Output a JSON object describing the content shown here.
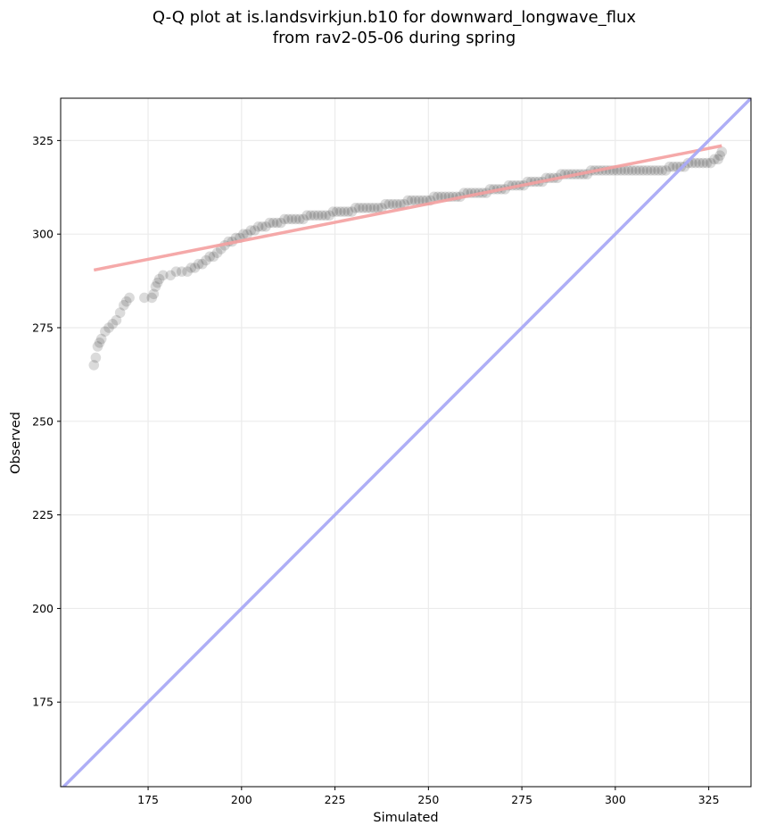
{
  "chart_data": {
    "type": "scatter",
    "title_line1": "Q-Q plot at is.landsvirkjun.b10 for downward_longwave_flux",
    "title_line2": "from rav2-05-06 during spring",
    "xlabel": "Simulated",
    "ylabel": "Observed",
    "xlim": [
      151.6,
      336.3
    ],
    "ylim": [
      152.4,
      336.3
    ],
    "xticks": [
      175,
      200,
      225,
      250,
      275,
      300,
      325
    ],
    "yticks": [
      175,
      200,
      225,
      250,
      275,
      300,
      325
    ],
    "grid": true,
    "points_color": "#000000",
    "fit_line_color": "#f4a0a0",
    "identity_line_color": "#aaaaf5",
    "fit_line": {
      "x": [
        160.5,
        328.5
      ],
      "y": [
        290.4,
        323.6
      ]
    },
    "identity_line": {
      "x": [
        151.6,
        336.3
      ],
      "y": [
        151.6,
        336.3
      ]
    },
    "points": [
      [
        160.5,
        265
      ],
      [
        161,
        267
      ],
      [
        161.5,
        270
      ],
      [
        162,
        271
      ],
      [
        162.5,
        272
      ],
      [
        163.5,
        274
      ],
      [
        164.5,
        275
      ],
      [
        165.5,
        276
      ],
      [
        166.5,
        277
      ],
      [
        167.5,
        279
      ],
      [
        168.5,
        281
      ],
      [
        169.2,
        282
      ],
      [
        170,
        283
      ],
      [
        174,
        283
      ],
      [
        176,
        283
      ],
      [
        176.5,
        284
      ],
      [
        177,
        286
      ],
      [
        177.5,
        287
      ],
      [
        178,
        288
      ],
      [
        179,
        289
      ],
      [
        181,
        289
      ],
      [
        182.5,
        290
      ],
      [
        184,
        290
      ],
      [
        185.5,
        290
      ],
      [
        186.5,
        291
      ],
      [
        187.5,
        291
      ],
      [
        188.5,
        292
      ],
      [
        189.5,
        292
      ],
      [
        190.5,
        293
      ],
      [
        191.5,
        294
      ],
      [
        192.5,
        294
      ],
      [
        193.5,
        295
      ],
      [
        194.5,
        296
      ],
      [
        195.5,
        297
      ],
      [
        196.5,
        298
      ],
      [
        197.5,
        298
      ],
      [
        198.5,
        299
      ],
      [
        199.5,
        299
      ],
      [
        200.5,
        300
      ],
      [
        201.5,
        300
      ],
      [
        202.5,
        301
      ],
      [
        203.5,
        301
      ],
      [
        204.5,
        302
      ],
      [
        205.5,
        302
      ],
      [
        206.5,
        302
      ],
      [
        207.5,
        303
      ],
      [
        208.5,
        303
      ],
      [
        209.5,
        303
      ],
      [
        210.5,
        303
      ],
      [
        211.5,
        304
      ],
      [
        212.5,
        304
      ],
      [
        213.5,
        304
      ],
      [
        214.5,
        304
      ],
      [
        215.5,
        304
      ],
      [
        216.5,
        304
      ],
      [
        217.5,
        305
      ],
      [
        218.5,
        305
      ],
      [
        219.5,
        305
      ],
      [
        220.5,
        305
      ],
      [
        221.5,
        305
      ],
      [
        222.5,
        305
      ],
      [
        223.5,
        305
      ],
      [
        224.5,
        306
      ],
      [
        225.5,
        306
      ],
      [
        226.5,
        306
      ],
      [
        227.5,
        306
      ],
      [
        228.5,
        306
      ],
      [
        229.5,
        306
      ],
      [
        230.5,
        307
      ],
      [
        231.5,
        307
      ],
      [
        232.5,
        307
      ],
      [
        233.5,
        307
      ],
      [
        234.5,
        307
      ],
      [
        235.5,
        307
      ],
      [
        236.5,
        307
      ],
      [
        237.5,
        307
      ],
      [
        238.5,
        308
      ],
      [
        239.5,
        308
      ],
      [
        240.5,
        308
      ],
      [
        241.5,
        308
      ],
      [
        242.5,
        308
      ],
      [
        243.5,
        308
      ],
      [
        244.5,
        309
      ],
      [
        245.5,
        309
      ],
      [
        246.5,
        309
      ],
      [
        247.5,
        309
      ],
      [
        248.5,
        309
      ],
      [
        249.5,
        309
      ],
      [
        250.5,
        309
      ],
      [
        251.5,
        310
      ],
      [
        252.5,
        310
      ],
      [
        253.5,
        310
      ],
      [
        254.5,
        310
      ],
      [
        255.5,
        310
      ],
      [
        256.5,
        310
      ],
      [
        257.5,
        310
      ],
      [
        258.5,
        310
      ],
      [
        259.5,
        311
      ],
      [
        260.5,
        311
      ],
      [
        261.5,
        311
      ],
      [
        262.5,
        311
      ],
      [
        263.5,
        311
      ],
      [
        264.5,
        311
      ],
      [
        265.5,
        311
      ],
      [
        266.5,
        312
      ],
      [
        267.5,
        312
      ],
      [
        268.5,
        312
      ],
      [
        269.5,
        312
      ],
      [
        270.5,
        312
      ],
      [
        271.5,
        313
      ],
      [
        272.5,
        313
      ],
      [
        273.5,
        313
      ],
      [
        274.5,
        313
      ],
      [
        275.5,
        313
      ],
      [
        276.5,
        314
      ],
      [
        277.5,
        314
      ],
      [
        278.5,
        314
      ],
      [
        279.5,
        314
      ],
      [
        280.5,
        314
      ],
      [
        281.5,
        315
      ],
      [
        282.5,
        315
      ],
      [
        283.5,
        315
      ],
      [
        284.5,
        315
      ],
      [
        285.5,
        316
      ],
      [
        286.5,
        316
      ],
      [
        287.5,
        316
      ],
      [
        288.5,
        316
      ],
      [
        289.5,
        316
      ],
      [
        290.5,
        316
      ],
      [
        291.5,
        316
      ],
      [
        292.5,
        316
      ],
      [
        293.5,
        317
      ],
      [
        294.5,
        317
      ],
      [
        295.5,
        317
      ],
      [
        296.5,
        317
      ],
      [
        297.5,
        317
      ],
      [
        298.5,
        317
      ],
      [
        299.5,
        317
      ],
      [
        300.5,
        317
      ],
      [
        301.5,
        317
      ],
      [
        302.5,
        317
      ],
      [
        303.5,
        317
      ],
      [
        304.5,
        317
      ],
      [
        305.5,
        317
      ],
      [
        306.5,
        317
      ],
      [
        307.5,
        317
      ],
      [
        308.5,
        317
      ],
      [
        309.5,
        317
      ],
      [
        310.5,
        317
      ],
      [
        311.5,
        317
      ],
      [
        312.5,
        317
      ],
      [
        313.5,
        317
      ],
      [
        314.5,
        318
      ],
      [
        315.5,
        318
      ],
      [
        316.5,
        318
      ],
      [
        317.5,
        318
      ],
      [
        318.5,
        318
      ],
      [
        319.5,
        319
      ],
      [
        320.5,
        319
      ],
      [
        321.5,
        319
      ],
      [
        322.5,
        319
      ],
      [
        323.5,
        319
      ],
      [
        324.5,
        319
      ],
      [
        325.5,
        319
      ],
      [
        326.5,
        320
      ],
      [
        327.5,
        320
      ],
      [
        328,
        321
      ],
      [
        328.5,
        322
      ]
    ]
  }
}
